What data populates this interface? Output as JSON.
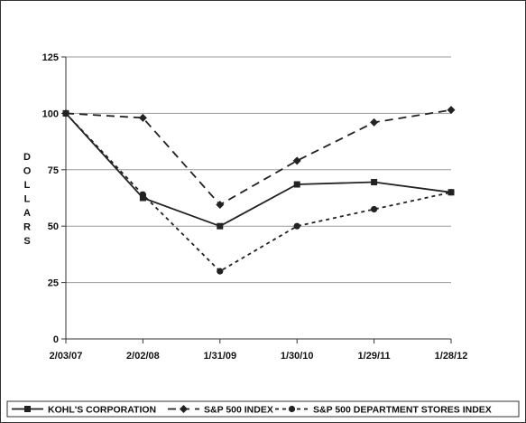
{
  "chart_data": {
    "type": "line",
    "title": "",
    "xlabel": "",
    "ylabel": "DOLLARS",
    "categories": [
      "2/03/07",
      "2/02/08",
      "1/31/09",
      "1/30/10",
      "1/29/11",
      "1/28/12"
    ],
    "ylim": [
      0,
      125
    ],
    "yticks": [
      0,
      25,
      50,
      75,
      100,
      125
    ],
    "grid": true,
    "legend_position": "bottom",
    "series": [
      {
        "name": "KOHL'S CORPORATION",
        "values": [
          100,
          62.5,
          50,
          68.5,
          69.5,
          65
        ],
        "marker": "square",
        "line_style": "solid",
        "color": "#222222"
      },
      {
        "name": "S&P 500 INDEX",
        "values": [
          100,
          98,
          59.5,
          79,
          96,
          101.5
        ],
        "marker": "diamond",
        "line_style": "dashed",
        "color": "#222222"
      },
      {
        "name": "S&P 500 DEPARTMENT STORES INDEX",
        "values": [
          100,
          64,
          30,
          50,
          57.5,
          65
        ],
        "marker": "circle",
        "line_style": "dotted",
        "color": "#222222"
      }
    ]
  }
}
